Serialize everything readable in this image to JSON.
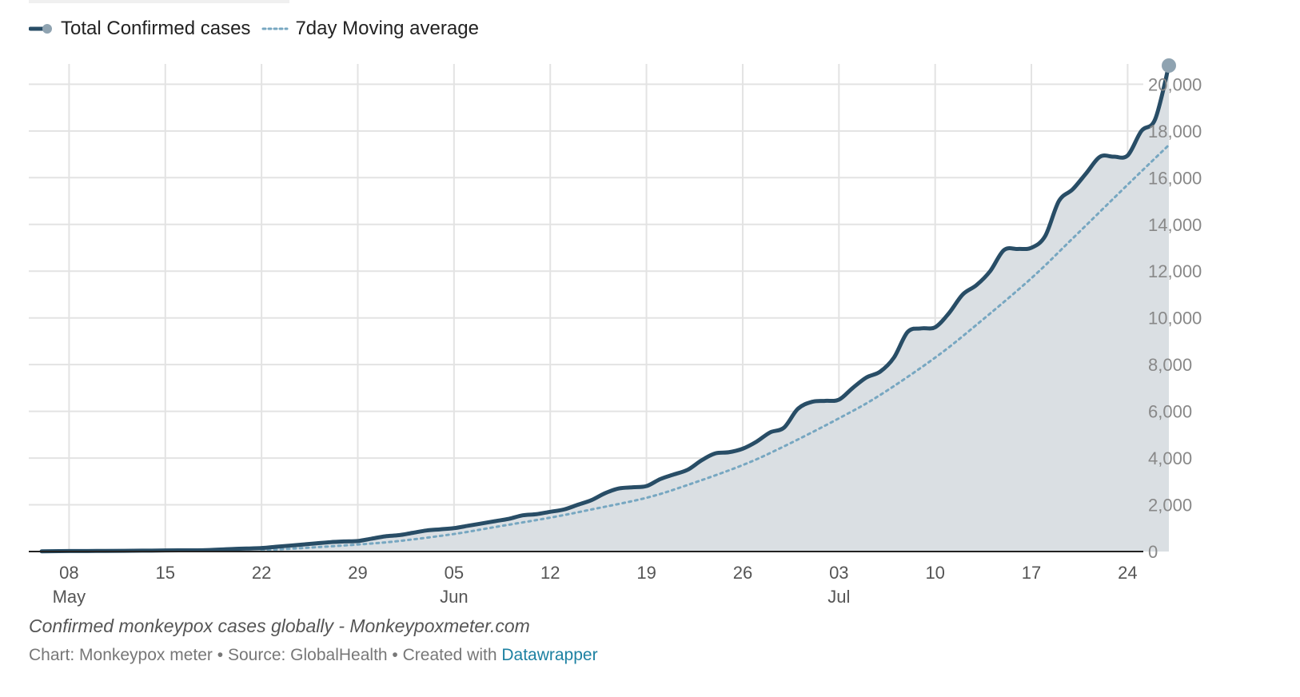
{
  "legend": [
    {
      "label": "Total Confirmed cases",
      "color": "#284d66",
      "style": "solid"
    },
    {
      "label": "7day Moving average",
      "color": "#77a7c1",
      "style": "dotted"
    }
  ],
  "caption": "Confirmed monkeypox cases globally - Monkeypoxmeter.com",
  "credits": {
    "chart": "Chart: Monkeypox meter",
    "separator": " • ",
    "source": "Source: GlobalHealth",
    "created": "Created with ",
    "tool": "Datawrapper"
  },
  "chart_data": {
    "type": "area",
    "title": "",
    "xlabel": "",
    "ylabel": "",
    "x_axis": {
      "range": [
        "2022-05-06",
        "2022-07-27"
      ],
      "ticks": [
        {
          "date": "2022-05-08",
          "label": "08",
          "month": "May"
        },
        {
          "date": "2022-05-15",
          "label": "15"
        },
        {
          "date": "2022-05-22",
          "label": "22"
        },
        {
          "date": "2022-05-29",
          "label": "29"
        },
        {
          "date": "2022-06-05",
          "label": "05",
          "month": "Jun"
        },
        {
          "date": "2022-06-12",
          "label": "12"
        },
        {
          "date": "2022-06-19",
          "label": "19"
        },
        {
          "date": "2022-06-26",
          "label": "26"
        },
        {
          "date": "2022-07-03",
          "label": "03",
          "month": "Jul"
        },
        {
          "date": "2022-07-10",
          "label": "10"
        },
        {
          "date": "2022-07-17",
          "label": "17"
        },
        {
          "date": "2022-07-24",
          "label": "24"
        }
      ]
    },
    "y_axis": {
      "range": [
        0,
        20800
      ],
      "ticks": [
        0,
        2000,
        4000,
        6000,
        8000,
        10000,
        12000,
        14000,
        16000,
        18000,
        20000
      ],
      "tick_labels": [
        "0",
        "2,000",
        "4,000",
        "6,000",
        "8,000",
        "10,000",
        "12,000",
        "14,000",
        "16,000",
        "18,000",
        "20,000"
      ],
      "position": "right"
    },
    "grid": true,
    "legend_position": "top-left",
    "series": [
      {
        "name": "Total Confirmed cases",
        "style": "solid",
        "color": "#284d66",
        "fill": "#dadfe3",
        "points": [
          [
            "2022-05-06",
            10
          ],
          [
            "2022-05-08",
            20
          ],
          [
            "2022-05-10",
            25
          ],
          [
            "2022-05-12",
            30
          ],
          [
            "2022-05-14",
            40
          ],
          [
            "2022-05-16",
            50
          ],
          [
            "2022-05-18",
            60
          ],
          [
            "2022-05-20",
            110
          ],
          [
            "2022-05-22",
            150
          ],
          [
            "2022-05-23",
            200
          ],
          [
            "2022-05-24",
            250
          ],
          [
            "2022-05-25",
            300
          ],
          [
            "2022-05-26",
            350
          ],
          [
            "2022-05-27",
            400
          ],
          [
            "2022-05-28",
            430
          ],
          [
            "2022-05-29",
            450
          ],
          [
            "2022-05-30",
            550
          ],
          [
            "2022-05-31",
            650
          ],
          [
            "2022-06-01",
            700
          ],
          [
            "2022-06-02",
            800
          ],
          [
            "2022-06-03",
            900
          ],
          [
            "2022-06-04",
            950
          ],
          [
            "2022-06-05",
            1000
          ],
          [
            "2022-06-06",
            1100
          ],
          [
            "2022-06-07",
            1200
          ],
          [
            "2022-06-08",
            1300
          ],
          [
            "2022-06-09",
            1400
          ],
          [
            "2022-06-10",
            1550
          ],
          [
            "2022-06-11",
            1600
          ],
          [
            "2022-06-12",
            1700
          ],
          [
            "2022-06-13",
            1800
          ],
          [
            "2022-06-14",
            2000
          ],
          [
            "2022-06-15",
            2200
          ],
          [
            "2022-06-16",
            2500
          ],
          [
            "2022-06-17",
            2700
          ],
          [
            "2022-06-18",
            2750
          ],
          [
            "2022-06-19",
            2800
          ],
          [
            "2022-06-20",
            3100
          ],
          [
            "2022-06-21",
            3300
          ],
          [
            "2022-06-22",
            3500
          ],
          [
            "2022-06-23",
            3900
          ],
          [
            "2022-06-24",
            4200
          ],
          [
            "2022-06-25",
            4250
          ],
          [
            "2022-06-26",
            4400
          ],
          [
            "2022-06-27",
            4700
          ],
          [
            "2022-06-28",
            5100
          ],
          [
            "2022-06-29",
            5300
          ],
          [
            "2022-06-30",
            6100
          ],
          [
            "2022-07-01",
            6400
          ],
          [
            "2022-07-02",
            6450
          ],
          [
            "2022-07-03",
            6500
          ],
          [
            "2022-07-04",
            7000
          ],
          [
            "2022-07-05",
            7450
          ],
          [
            "2022-07-06",
            7700
          ],
          [
            "2022-07-07",
            8300
          ],
          [
            "2022-07-08",
            9400
          ],
          [
            "2022-07-09",
            9550
          ],
          [
            "2022-07-10",
            9600
          ],
          [
            "2022-07-11",
            10200
          ],
          [
            "2022-07-12",
            11000
          ],
          [
            "2022-07-13",
            11400
          ],
          [
            "2022-07-14",
            12000
          ],
          [
            "2022-07-15",
            12900
          ],
          [
            "2022-07-16",
            12950
          ],
          [
            "2022-07-17",
            13000
          ],
          [
            "2022-07-18",
            13500
          ],
          [
            "2022-07-19",
            15000
          ],
          [
            "2022-07-20",
            15500
          ],
          [
            "2022-07-21",
            16200
          ],
          [
            "2022-07-22",
            16900
          ],
          [
            "2022-07-23",
            16900
          ],
          [
            "2022-07-24",
            16950
          ],
          [
            "2022-07-25",
            18000
          ],
          [
            "2022-07-26",
            18500
          ],
          [
            "2022-07-27",
            20800
          ]
        ]
      },
      {
        "name": "7day Moving average",
        "style": "dotted",
        "color": "#77a7c1",
        "points": [
          [
            "2022-05-22",
            50
          ],
          [
            "2022-05-25",
            150
          ],
          [
            "2022-05-29",
            300
          ],
          [
            "2022-06-01",
            450
          ],
          [
            "2022-06-05",
            750
          ],
          [
            "2022-06-08",
            1050
          ],
          [
            "2022-06-12",
            1450
          ],
          [
            "2022-06-15",
            1800
          ],
          [
            "2022-06-19",
            2300
          ],
          [
            "2022-06-22",
            2850
          ],
          [
            "2022-06-26",
            3700
          ],
          [
            "2022-06-29",
            4500
          ],
          [
            "2022-07-03",
            5700
          ],
          [
            "2022-07-06",
            6700
          ],
          [
            "2022-07-10",
            8300
          ],
          [
            "2022-07-13",
            9700
          ],
          [
            "2022-07-17",
            11700
          ],
          [
            "2022-07-20",
            13400
          ],
          [
            "2022-07-24",
            15700
          ],
          [
            "2022-07-27",
            17400
          ]
        ]
      }
    ]
  }
}
